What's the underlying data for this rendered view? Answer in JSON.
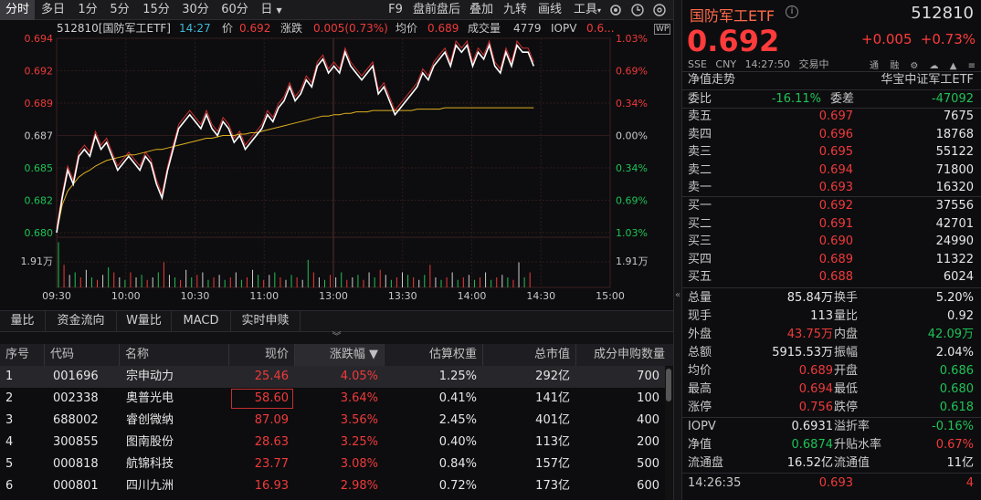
{
  "toolbar": {
    "tabs_left": [
      "分时",
      "多日",
      "1分",
      "5分",
      "15分",
      "30分",
      "60分",
      "日"
    ],
    "active_tab": "分时",
    "tabs_right": [
      "F9",
      "盘前盘后",
      "叠加",
      "九转",
      "画线",
      "工具"
    ]
  },
  "info_bar": {
    "name": "512810[国防军工ETF]",
    "time": "14:27",
    "price_label": "价",
    "price": "0.692",
    "change_label": "涨跌",
    "change": "0.005(0.73%)",
    "avg_label": "均价",
    "avg": "0.689",
    "volume_label": "成交量",
    "volume": "4779",
    "iopv_label": "IOPV",
    "iopv": "0.6..."
  },
  "chart_data": {
    "type": "line",
    "y_ticks_left": [
      "0.694",
      "0.692",
      "0.689",
      "0.687",
      "0.685",
      "0.682",
      "0.680"
    ],
    "y_ticks_right": [
      "1.03%",
      "0.69%",
      "0.34%",
      "0.00%",
      "0.34%",
      "0.69%",
      "1.03%"
    ],
    "ylim": [
      0.68,
      0.694
    ],
    "baseline": 0.687,
    "x_ticks": [
      "09:30",
      "10:00",
      "10:30",
      "11:00",
      "13:00",
      "13:30",
      "14:00",
      "14:30",
      "15:00"
    ],
    "volume_label": "1.91万",
    "price_series": [
      0.68,
      0.6825,
      0.6845,
      0.6835,
      0.6855,
      0.686,
      0.6855,
      0.687,
      0.686,
      0.6865,
      0.6855,
      0.6845,
      0.685,
      0.6855,
      0.685,
      0.6845,
      0.6855,
      0.685,
      0.6835,
      0.6825,
      0.6845,
      0.686,
      0.6875,
      0.688,
      0.6885,
      0.688,
      0.6875,
      0.6885,
      0.6875,
      0.687,
      0.688,
      0.6875,
      0.6865,
      0.687,
      0.686,
      0.6865,
      0.687,
      0.6875,
      0.6885,
      0.688,
      0.689,
      0.6895,
      0.6905,
      0.6895,
      0.69,
      0.691,
      0.6905,
      0.692,
      0.6925,
      0.6915,
      0.692,
      0.6915,
      0.693,
      0.692,
      0.6915,
      0.691,
      0.6915,
      0.692,
      0.69,
      0.6905,
      0.6895,
      0.6885,
      0.689,
      0.6895,
      0.69,
      0.6905,
      0.6915,
      0.691,
      0.692,
      0.6925,
      0.693,
      0.692,
      0.6935,
      0.693,
      0.6935,
      0.692,
      0.693,
      0.6925,
      0.6935,
      0.692,
      0.6915,
      0.693,
      0.692,
      0.6935,
      0.693,
      0.693,
      0.692
    ],
    "avg_series": [
      0.68,
      0.682,
      0.683,
      0.6835,
      0.684,
      0.6843,
      0.6845,
      0.6848,
      0.685,
      0.6852,
      0.6853,
      0.6854,
      0.6855,
      0.6856,
      0.6856,
      0.6857,
      0.6858,
      0.6859,
      0.686,
      0.686,
      0.6861,
      0.6862,
      0.6863,
      0.6864,
      0.6865,
      0.6866,
      0.6867,
      0.6868,
      0.6868,
      0.6869,
      0.687,
      0.687,
      0.687,
      0.6871,
      0.6871,
      0.6872,
      0.6872,
      0.6873,
      0.6874,
      0.6875,
      0.6876,
      0.6877,
      0.6878,
      0.6879,
      0.688,
      0.6881,
      0.6882,
      0.6883,
      0.6884,
      0.6884,
      0.6885,
      0.6885,
      0.6886,
      0.6886,
      0.6887,
      0.6887,
      0.6887,
      0.6888,
      0.6888,
      0.6888,
      0.6888,
      0.6888,
      0.6888,
      0.6888,
      0.6888,
      0.6889,
      0.6889,
      0.6889,
      0.6889,
      0.6889,
      0.689,
      0.689,
      0.689,
      0.689,
      0.689,
      0.689,
      0.689,
      0.689,
      0.689,
      0.689,
      0.689,
      0.689,
      0.689,
      0.689,
      0.689,
      0.689,
      0.689
    ]
  },
  "subtabs": [
    "量比",
    "资金流向",
    "W量比",
    "MACD",
    "实时申赎"
  ],
  "table": {
    "headers": [
      "序号",
      "代码",
      "名称",
      "现价",
      "涨跌幅 ▼",
      "估算权重",
      "总市值",
      "成分申购数量"
    ],
    "rows": [
      {
        "idx": "1",
        "code": "001696",
        "name": "宗申动力",
        "price": "25.46",
        "pct": "4.05%",
        "weight": "1.25%",
        "cap": "292亿",
        "qty": "700"
      },
      {
        "idx": "2",
        "code": "002338",
        "name": "奥普光电",
        "price": "58.60",
        "pct": "3.64%",
        "weight": "0.41%",
        "cap": "141亿",
        "qty": "100"
      },
      {
        "idx": "3",
        "code": "688002",
        "name": "睿创微纳",
        "price": "87.09",
        "pct": "3.56%",
        "weight": "2.45%",
        "cap": "401亿",
        "qty": "400"
      },
      {
        "idx": "4",
        "code": "300855",
        "name": "图南股份",
        "price": "28.63",
        "pct": "3.25%",
        "weight": "0.40%",
        "cap": "113亿",
        "qty": "200"
      },
      {
        "idx": "5",
        "code": "000818",
        "name": "航锦科技",
        "price": "23.77",
        "pct": "3.08%",
        "weight": "0.84%",
        "cap": "157亿",
        "qty": "500"
      },
      {
        "idx": "6",
        "code": "000801",
        "name": "四川九洲",
        "price": "16.93",
        "pct": "2.98%",
        "weight": "0.72%",
        "cap": "173亿",
        "qty": "600"
      }
    ]
  },
  "quote": {
    "title": "国防军工ETF",
    "code": "512810",
    "price": "0.692",
    "change": "+0.005",
    "change_pct": "+0.73%",
    "meta": [
      "SSE",
      "CNY",
      "14:27:50",
      "交易中"
    ],
    "icons": [
      "通",
      "融",
      "⚙",
      "☁",
      "▲",
      "≡"
    ],
    "nav_trend": "净值走势",
    "index_name": "华宝中证军工ETF",
    "weibi_label": "委比",
    "weibi": "-16.11%",
    "weicha_label": "委差",
    "weicha": "-47092",
    "asks": [
      {
        "label": "卖五",
        "price": "0.697",
        "vol": "7675"
      },
      {
        "label": "卖四",
        "price": "0.696",
        "vol": "18768"
      },
      {
        "label": "卖三",
        "price": "0.695",
        "vol": "55122"
      },
      {
        "label": "卖二",
        "price": "0.694",
        "vol": "71800"
      },
      {
        "label": "卖一",
        "price": "0.693",
        "vol": "16320"
      }
    ],
    "bids": [
      {
        "label": "买一",
        "price": "0.692",
        "vol": "37556"
      },
      {
        "label": "买二",
        "price": "0.691",
        "vol": "42701"
      },
      {
        "label": "买三",
        "price": "0.690",
        "vol": "24990"
      },
      {
        "label": "买四",
        "price": "0.689",
        "vol": "11322"
      },
      {
        "label": "买五",
        "price": "0.688",
        "vol": "6024"
      }
    ],
    "stats": [
      {
        "l1": "总量",
        "v1": "85.84万",
        "c1": "white",
        "l2": "换手",
        "v2": "5.20%",
        "c2": "white"
      },
      {
        "l1": "现手",
        "v1": "113",
        "c1": "white",
        "l2": "量比",
        "v2": "0.92",
        "c2": "white"
      },
      {
        "l1": "外盘",
        "v1": "43.75万",
        "c1": "red",
        "l2": "内盘",
        "v2": "42.09万",
        "c2": "green"
      },
      {
        "l1": "总额",
        "v1": "5915.53万",
        "c1": "white",
        "l2": "振幅",
        "v2": "2.04%",
        "c2": "white"
      },
      {
        "l1": "均价",
        "v1": "0.689",
        "c1": "red",
        "l2": "开盘",
        "v2": "0.686",
        "c2": "green"
      },
      {
        "l1": "最高",
        "v1": "0.694",
        "c1": "red",
        "l2": "最低",
        "v2": "0.680",
        "c2": "green"
      },
      {
        "l1": "涨停",
        "v1": "0.756",
        "c1": "red",
        "l2": "跌停",
        "v2": "0.618",
        "c2": "green"
      }
    ],
    "stats2": [
      {
        "l1": "IOPV",
        "v1": "0.6931",
        "c1": "white",
        "l2": "溢折率",
        "v2": "-0.16%",
        "c2": "green"
      },
      {
        "l1": "净值",
        "v1": "0.6874",
        "c1": "green",
        "l2": "升贴水率",
        "v2": "0.67%",
        "c2": "red"
      },
      {
        "l1": "流通盘",
        "v1": "16.52亿",
        "c1": "white",
        "l2": "流通值",
        "v2": "11亿",
        "c2": "white"
      }
    ],
    "ticks": [
      {
        "time": "14:26:35",
        "price": "0.693",
        "vol": "4"
      }
    ]
  }
}
